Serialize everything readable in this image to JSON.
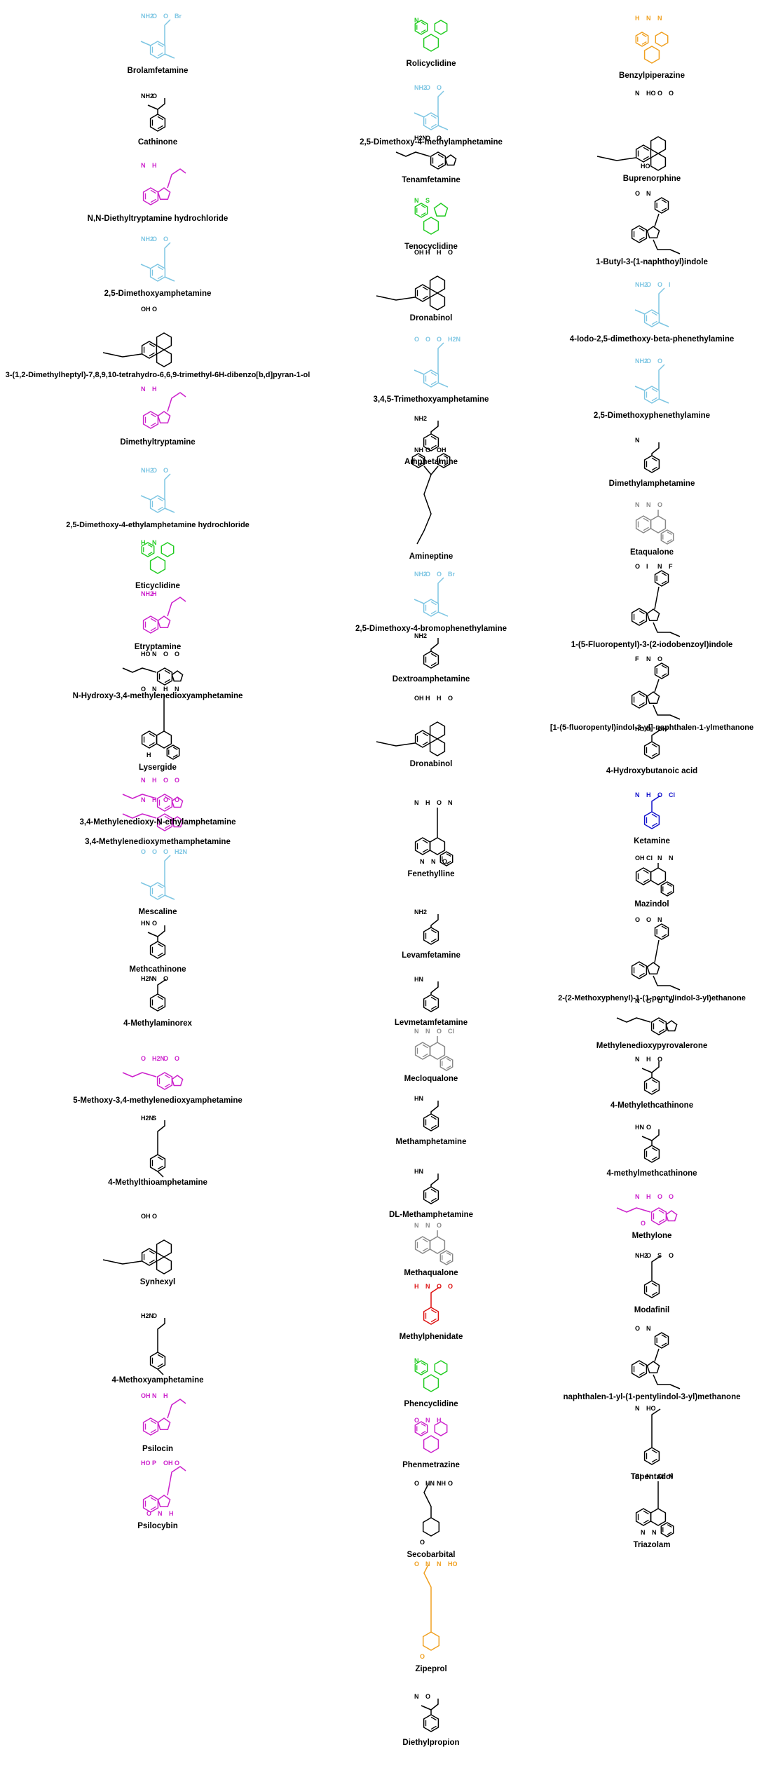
{
  "colors": {
    "black": "#000000",
    "lightblue": "#7ec6e3",
    "magenta": "#cc22cc",
    "green": "#22cc22",
    "orange": "#f0a020",
    "gray": "#888888",
    "red": "#dd1111",
    "blue": "#1111cc"
  },
  "columns": [
    {
      "molecules": [
        {
          "name": "Brolamfetamine",
          "color": "lightblue",
          "glyph": "phenethylamine",
          "atoms": [
            "NH2",
            "O",
            "O",
            "Br"
          ]
        },
        {
          "name": "Cathinone",
          "color": "black",
          "glyph": "cathinone",
          "atoms": [
            "NH2",
            "O"
          ]
        },
        {
          "name": "N,N-Diethyltryptamine hydrochloride",
          "color": "magenta",
          "glyph": "tryptamine",
          "atoms": [
            "N",
            "H"
          ]
        },
        {
          "name": "2,5-Dimethoxyamphetamine",
          "color": "lightblue",
          "glyph": "phenethylamine",
          "atoms": [
            "NH2",
            "O",
            "O"
          ]
        },
        {
          "name": "3-(1,2-Dimethylheptyl)-7,8,9,10-tetrahydro-6,6,9-trimethyl-6H-dibenzo[b,d]pyran-1-ol",
          "color": "black",
          "glyph": "cannabinoid",
          "atoms": [
            "OH",
            "O"
          ]
        },
        {
          "name": "Dimethyltryptamine",
          "color": "magenta",
          "glyph": "tryptamine",
          "atoms": [
            "N",
            "H"
          ]
        },
        {
          "name": "2,5-Dimethoxy-4-ethylamphetamine hydrochloride",
          "color": "lightblue",
          "glyph": "phenethylamine",
          "atoms": [
            "NH2",
            "O",
            "O"
          ]
        },
        {
          "name": "Eticyclidine",
          "color": "green",
          "glyph": "cyclidine",
          "atoms": [
            "H",
            "N"
          ]
        },
        {
          "name": "Etryptamine",
          "color": "magenta",
          "glyph": "tryptamine",
          "atoms": [
            "NH2",
            "H"
          ]
        },
        {
          "name": "N-Hydroxy-3,4-methylenedioxyamphetamine",
          "color": "black",
          "glyph": "mda",
          "atoms": [
            "HO",
            "N",
            "O",
            "O"
          ]
        },
        {
          "name": "Lysergide",
          "color": "black",
          "glyph": "lysergide",
          "atoms": [
            "O",
            "N",
            "H",
            "N",
            "H"
          ]
        },
        {
          "name": "3,4-Methylenedioxy-N-ethylamphetamine",
          "color": "magenta",
          "glyph": "mda",
          "atoms": [
            "N",
            "H",
            "O",
            "O"
          ]
        },
        {
          "name": "3,4-Methylenedioxymethamphetamine",
          "color": "magenta",
          "glyph": "mda",
          "atoms": [
            "N",
            "H",
            "O",
            "O"
          ]
        },
        {
          "name": "Mescaline",
          "color": "lightblue",
          "glyph": "mescaline",
          "atoms": [
            "O",
            "O",
            "O",
            "H2N"
          ]
        },
        {
          "name": "Methcathinone",
          "color": "black",
          "glyph": "cathinone",
          "atoms": [
            "HN",
            "O"
          ]
        },
        {
          "name": "4-Methylaminorex",
          "color": "black",
          "glyph": "aminorex",
          "atoms": [
            "H2N",
            "N",
            "O"
          ]
        },
        {
          "name": "5-Methoxy-3,4-methylenedioxyamphetamine",
          "color": "magenta",
          "glyph": "mda",
          "atoms": [
            "O",
            "H2N",
            "O",
            "O"
          ]
        },
        {
          "name": "4-Methylthioamphetamine",
          "color": "black",
          "glyph": "amphetamine4",
          "atoms": [
            "H2N",
            "S"
          ]
        },
        {
          "name": "Synhexyl",
          "color": "black",
          "glyph": "cannabinoid",
          "atoms": [
            "OH",
            "O"
          ]
        },
        {
          "name": "4-Methoxyamphetamine",
          "color": "black",
          "glyph": "amphetamine4",
          "atoms": [
            "H2N",
            "O"
          ]
        },
        {
          "name": "Psilocin",
          "color": "magenta",
          "glyph": "tryptamine",
          "atoms": [
            "OH",
            "N",
            "H"
          ]
        },
        {
          "name": "Psilocybin",
          "color": "magenta",
          "glyph": "psilocybin",
          "atoms": [
            "HO",
            "P",
            "OH",
            "O",
            "O",
            "N",
            "H"
          ]
        }
      ]
    },
    {
      "molecules": [
        {
          "name": "Rolicyclidine",
          "color": "green",
          "glyph": "cyclidine",
          "atoms": [
            "N"
          ]
        },
        {
          "name": "2,5-Dimethoxy-4-methylamphetamine",
          "color": "lightblue",
          "glyph": "phenethylamine",
          "atoms": [
            "NH2",
            "O",
            "O"
          ]
        },
        {
          "name": "Tenamfetamine",
          "color": "black",
          "glyph": "mda",
          "atoms": [
            "H2N",
            "O",
            "O"
          ]
        },
        {
          "name": "Tenocyclidine",
          "color": "green",
          "glyph": "tenocyclidine",
          "atoms": [
            "N",
            "S"
          ]
        },
        {
          "name": "Dronabinol",
          "color": "black",
          "glyph": "cannabinoid",
          "atoms": [
            "OH",
            "H",
            "H",
            "O"
          ]
        },
        {
          "name": "3,4,5-Trimethoxyamphetamine",
          "color": "lightblue",
          "glyph": "mescaline",
          "atoms": [
            "O",
            "O",
            "O",
            "H2N"
          ]
        },
        {
          "name": "Amphetamine",
          "color": "black",
          "glyph": "amphetamine",
          "atoms": [
            "NH2"
          ]
        },
        {
          "name": "Amineptine",
          "color": "black",
          "glyph": "amineptine",
          "atoms": [
            "NH",
            "O",
            "OH"
          ]
        },
        {
          "name": "2,5-Dimethoxy-4-bromophenethylamine",
          "color": "lightblue",
          "glyph": "phenethylamine",
          "atoms": [
            "NH2",
            "O",
            "O",
            "Br"
          ]
        },
        {
          "name": "Dextroamphetamine",
          "color": "black",
          "glyph": "amphetamine",
          "atoms": [
            "NH2"
          ]
        },
        {
          "name": "Dronabinol",
          "color": "black",
          "glyph": "cannabinoid",
          "atoms": [
            "OH",
            "H",
            "H",
            "O"
          ]
        },
        {
          "name": "Fenethylline",
          "color": "black",
          "glyph": "fenethylline",
          "atoms": [
            "N",
            "H",
            "O",
            "N",
            "N",
            "N",
            "O"
          ]
        },
        {
          "name": "Levamfetamine",
          "color": "black",
          "glyph": "amphetamine",
          "atoms": [
            "NH2"
          ]
        },
        {
          "name": "Levmetamfetamine",
          "color": "black",
          "glyph": "amphetamine",
          "atoms": [
            "HN"
          ]
        },
        {
          "name": "Mecloqualone",
          "color": "gray",
          "glyph": "quinazolinone",
          "atoms": [
            "N",
            "N",
            "O",
            "Cl"
          ]
        },
        {
          "name": "Methamphetamine",
          "color": "black",
          "glyph": "amphetamine",
          "atoms": [
            "HN"
          ]
        },
        {
          "name": "DL-Methamphetamine",
          "color": "black",
          "glyph": "amphetamine",
          "atoms": [
            "HN"
          ]
        },
        {
          "name": "Methaqualone",
          "color": "gray",
          "glyph": "quinazolinone",
          "atoms": [
            "N",
            "N",
            "O"
          ]
        },
        {
          "name": "Methylphenidate",
          "color": "red",
          "glyph": "methylphenidate",
          "atoms": [
            "H",
            "N",
            "O",
            "O"
          ]
        },
        {
          "name": "Phencyclidine",
          "color": "green",
          "glyph": "cyclidine",
          "atoms": [
            "N"
          ]
        },
        {
          "name": "Phenmetrazine",
          "color": "magenta",
          "glyph": "phenmetrazine",
          "atoms": [
            "O",
            "N",
            "H"
          ]
        },
        {
          "name": "Secobarbital",
          "color": "black",
          "glyph": "barbiturate",
          "atoms": [
            "O",
            "HN",
            "NH",
            "O",
            "O"
          ]
        },
        {
          "name": "Zipeprol",
          "color": "orange",
          "glyph": "zipeprol",
          "atoms": [
            "O",
            "N",
            "N",
            "HO",
            "O"
          ]
        },
        {
          "name": "Diethylpropion",
          "color": "black",
          "glyph": "cathinone",
          "atoms": [
            "N",
            "O"
          ]
        }
      ]
    },
    {
      "molecules": [
        {
          "name": "Benzylpiperazine",
          "color": "orange",
          "glyph": "piperazine",
          "atoms": [
            "H",
            "N",
            "N"
          ]
        },
        {
          "name": "Buprenorphine",
          "color": "black",
          "glyph": "buprenorphine",
          "atoms": [
            "N",
            "HO",
            "O",
            "O",
            "HO"
          ]
        },
        {
          "name": "1-Butyl-3-(1-naphthoyl)indole",
          "color": "black",
          "glyph": "naphthoylindole",
          "atoms": [
            "O",
            "N"
          ]
        },
        {
          "name": "4-Iodo-2,5-dimethoxy-beta-phenethylamine",
          "color": "lightblue",
          "glyph": "phenethylamine",
          "atoms": [
            "NH2",
            "O",
            "O",
            "I"
          ]
        },
        {
          "name": "2,5-Dimethoxyphenethylamine",
          "color": "lightblue",
          "glyph": "phenethylamine",
          "atoms": [
            "NH2",
            "O",
            "O"
          ]
        },
        {
          "name": "Dimethylamphetamine",
          "color": "black",
          "glyph": "amphetamine",
          "atoms": [
            "N"
          ]
        },
        {
          "name": "Etaqualone",
          "color": "gray",
          "glyph": "quinazolinone",
          "atoms": [
            "N",
            "N",
            "O"
          ]
        },
        {
          "name": "1-(5-Fluoropentyl)-3-(2-iodobenzoyl)indole",
          "color": "black",
          "glyph": "benzoylindole",
          "atoms": [
            "O",
            "I",
            "N",
            "F"
          ]
        },
        {
          "name": "[1-(5-fluoropentyl)indol-3-yl]-naphthalen-1-ylmethanone",
          "color": "black",
          "glyph": "naphthoylindole",
          "atoms": [
            "F",
            "N",
            "O"
          ]
        },
        {
          "name": "4-Hydroxybutanoic acid",
          "color": "black",
          "glyph": "ghb",
          "atoms": [
            "HO",
            "O",
            "OH"
          ]
        },
        {
          "name": "Ketamine",
          "color": "blue",
          "glyph": "ketamine",
          "atoms": [
            "N",
            "H",
            "O",
            "Cl"
          ]
        },
        {
          "name": "Mazindol",
          "color": "black",
          "glyph": "mazindol",
          "atoms": [
            "OH",
            "Cl",
            "N",
            "N"
          ]
        },
        {
          "name": "2-(2-Methoxyphenyl)-1-(1-pentylindol-3-yl)ethanone",
          "color": "black",
          "glyph": "benzoylindole",
          "atoms": [
            "O",
            "O",
            "N"
          ]
        },
        {
          "name": "Methylenedioxypyrovalerone",
          "color": "black",
          "glyph": "mdpv",
          "atoms": [
            "N",
            "O",
            "O",
            "O"
          ]
        },
        {
          "name": "4-Methylethcathinone",
          "color": "black",
          "glyph": "cathinone",
          "atoms": [
            "N",
            "H",
            "O"
          ]
        },
        {
          "name": "4-methylmethcathinone",
          "color": "black",
          "glyph": "cathinone",
          "atoms": [
            "HN",
            "O"
          ]
        },
        {
          "name": "Methylone",
          "color": "magenta",
          "glyph": "methylone",
          "atoms": [
            "N",
            "H",
            "O",
            "O",
            "O"
          ]
        },
        {
          "name": "Modafinil",
          "color": "black",
          "glyph": "modafinil",
          "atoms": [
            "NH2",
            "O",
            "S",
            "O"
          ]
        },
        {
          "name": "naphthalen-1-yl-(1-pentylindol-3-yl)methanone",
          "color": "black",
          "glyph": "naphthoylindole",
          "atoms": [
            "O",
            "N"
          ]
        },
        {
          "name": "Tapentadol",
          "color": "black",
          "glyph": "tapentadol",
          "atoms": [
            "N",
            "HO"
          ]
        },
        {
          "name": "Triazolam",
          "color": "black",
          "glyph": "triazolam",
          "atoms": [
            "Cl",
            "N",
            "Cl",
            "N",
            "N",
            "N"
          ]
        }
      ]
    }
  ]
}
